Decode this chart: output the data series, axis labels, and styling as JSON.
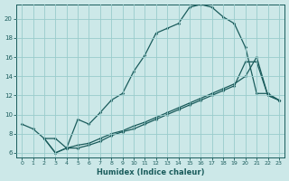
{
  "xlabel": "Humidex (Indice chaleur)",
  "bg_color": "#cce8e8",
  "grid_color": "#99cccc",
  "line_color": "#1a5c5c",
  "xlim": [
    -0.5,
    23.5
  ],
  "ylim": [
    5.5,
    21.5
  ],
  "xticks": [
    0,
    1,
    2,
    3,
    4,
    5,
    6,
    7,
    8,
    9,
    10,
    11,
    12,
    13,
    14,
    15,
    16,
    17,
    18,
    19,
    20,
    21,
    22,
    23
  ],
  "yticks": [
    6,
    8,
    10,
    12,
    14,
    16,
    18,
    20
  ],
  "line1_x": [
    0,
    1,
    2,
    3,
    4,
    5,
    6,
    7,
    8,
    9,
    10,
    11,
    12,
    13,
    14,
    15,
    16,
    17,
    18,
    19,
    20,
    21,
    22,
    23
  ],
  "line1_y": [
    9.0,
    8.5,
    7.5,
    7.5,
    6.5,
    9.5,
    9.0,
    10.2,
    11.5,
    12.2,
    14.5,
    16.2,
    18.5,
    19.0,
    19.5,
    21.2,
    21.5,
    21.2,
    20.2,
    19.5,
    17.0,
    12.2,
    12.2,
    11.5
  ],
  "line2_x": [
    2,
    3,
    4,
    5,
    6,
    7,
    8,
    9,
    10,
    11,
    12,
    13,
    14,
    15,
    16,
    17,
    18,
    19,
    20,
    21,
    22,
    23
  ],
  "line2_y": [
    7.5,
    6.0,
    6.5,
    6.5,
    6.8,
    7.2,
    7.8,
    8.2,
    8.5,
    9.0,
    9.5,
    10.0,
    10.5,
    11.0,
    11.5,
    12.0,
    12.5,
    13.0,
    15.5,
    15.5,
    12.0,
    11.5
  ],
  "line3_x": [
    2,
    3,
    4,
    5,
    6,
    7,
    8,
    9,
    10,
    11,
    12,
    13,
    14,
    15,
    16,
    17,
    18,
    19,
    20,
    21,
    22,
    23
  ],
  "line3_y": [
    7.5,
    6.0,
    6.5,
    6.8,
    7.0,
    7.5,
    8.0,
    8.3,
    8.8,
    9.2,
    9.7,
    10.2,
    10.7,
    11.2,
    11.7,
    12.2,
    12.7,
    13.2,
    14.0,
    16.0,
    12.0,
    11.5
  ]
}
